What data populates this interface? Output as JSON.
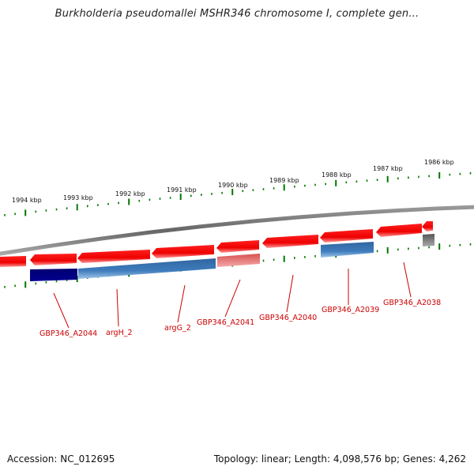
{
  "title": "Burkholderia pseudomallei MSHR346 chromosome I, complete gen...",
  "footer": {
    "accession": "Accession: NC_012695",
    "summary": "Topology: linear; Length: 4,098,576 bp; Genes: 4,262"
  },
  "colors": {
    "gene_red": "#ff0000",
    "gene_blue_light": "#3a78b8",
    "gene_blue_dark": "#000080",
    "gene_pink": "#e06060",
    "gene_gray": "#555555",
    "tick_green": "#007700",
    "backbone_gray": "#777777",
    "label_red": "#cc0000"
  },
  "kbp_labels": [
    "1994 kbp",
    "1993 kbp",
    "1992 kbp",
    "1991 kbp",
    "1990 kbp",
    "1989 kbp",
    "1988 kbp",
    "1987 kbp",
    "1986 kbp"
  ],
  "gene_labels": [
    "GBP346_A2044",
    "argH_2",
    "argG_2",
    "GBP346_A2041",
    "GBP346_A2040",
    "GBP346_A2039",
    "GBP346_A2038"
  ]
}
